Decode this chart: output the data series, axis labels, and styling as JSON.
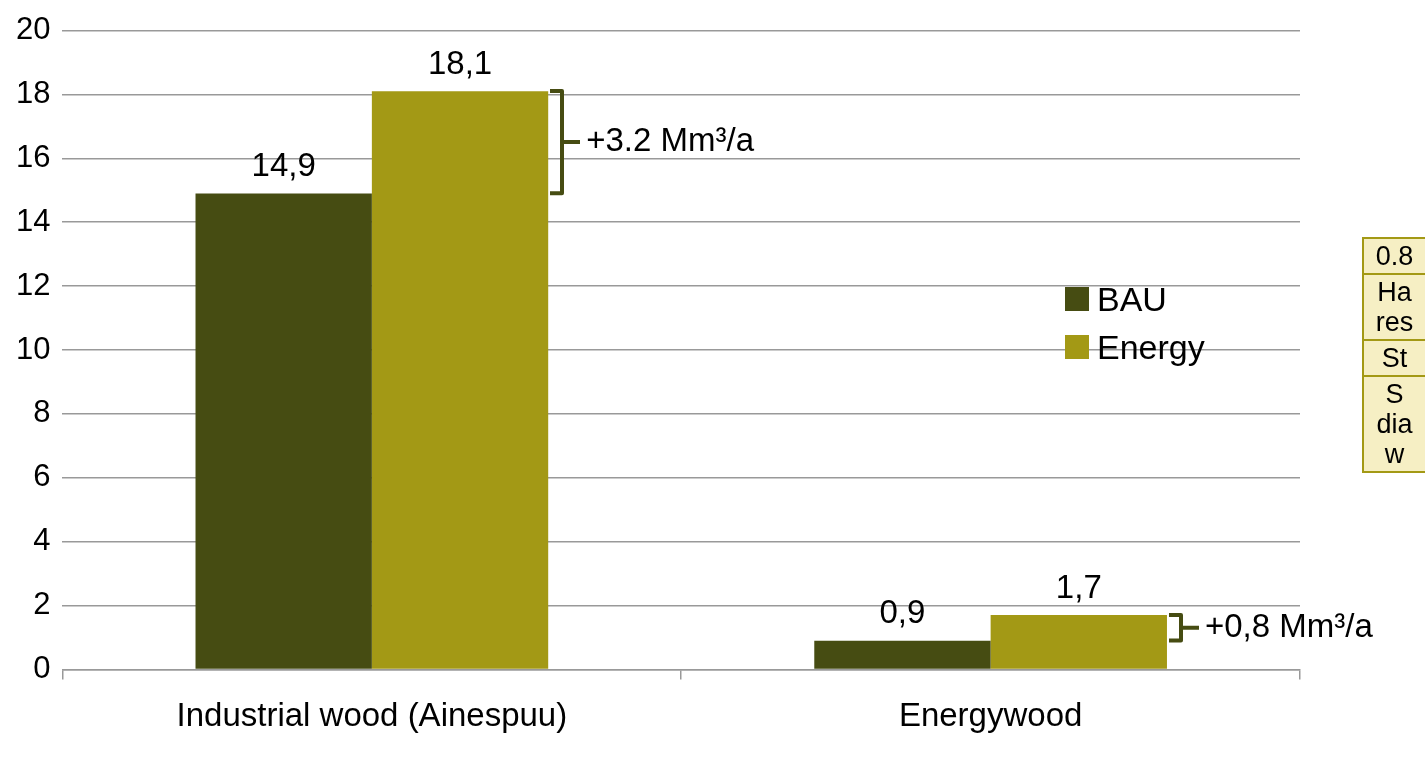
{
  "chart_data": {
    "type": "bar",
    "categories": [
      "Industrial wood (Ainespuu)",
      "Energywood"
    ],
    "series": [
      {
        "name": "BAU",
        "color": "#464c12",
        "values": [
          14.9,
          0.9
        ],
        "value_labels": [
          "14,9",
          "0,9"
        ]
      },
      {
        "name": "Energy",
        "color": "#a39915",
        "values": [
          18.1,
          1.7
        ],
        "value_labels": [
          "18,1",
          "1,7"
        ]
      }
    ],
    "ylim": [
      0,
      20
    ],
    "yticks": [
      0,
      2,
      4,
      6,
      8,
      10,
      12,
      14,
      16,
      18,
      20
    ],
    "grid": "y",
    "legend": "right",
    "annotations": [
      "+3.2 Mm³/a",
      "+0,8 Mm³/a",
      "0.8",
      "Ha res",
      "St",
      "S dia w"
    ]
  }
}
